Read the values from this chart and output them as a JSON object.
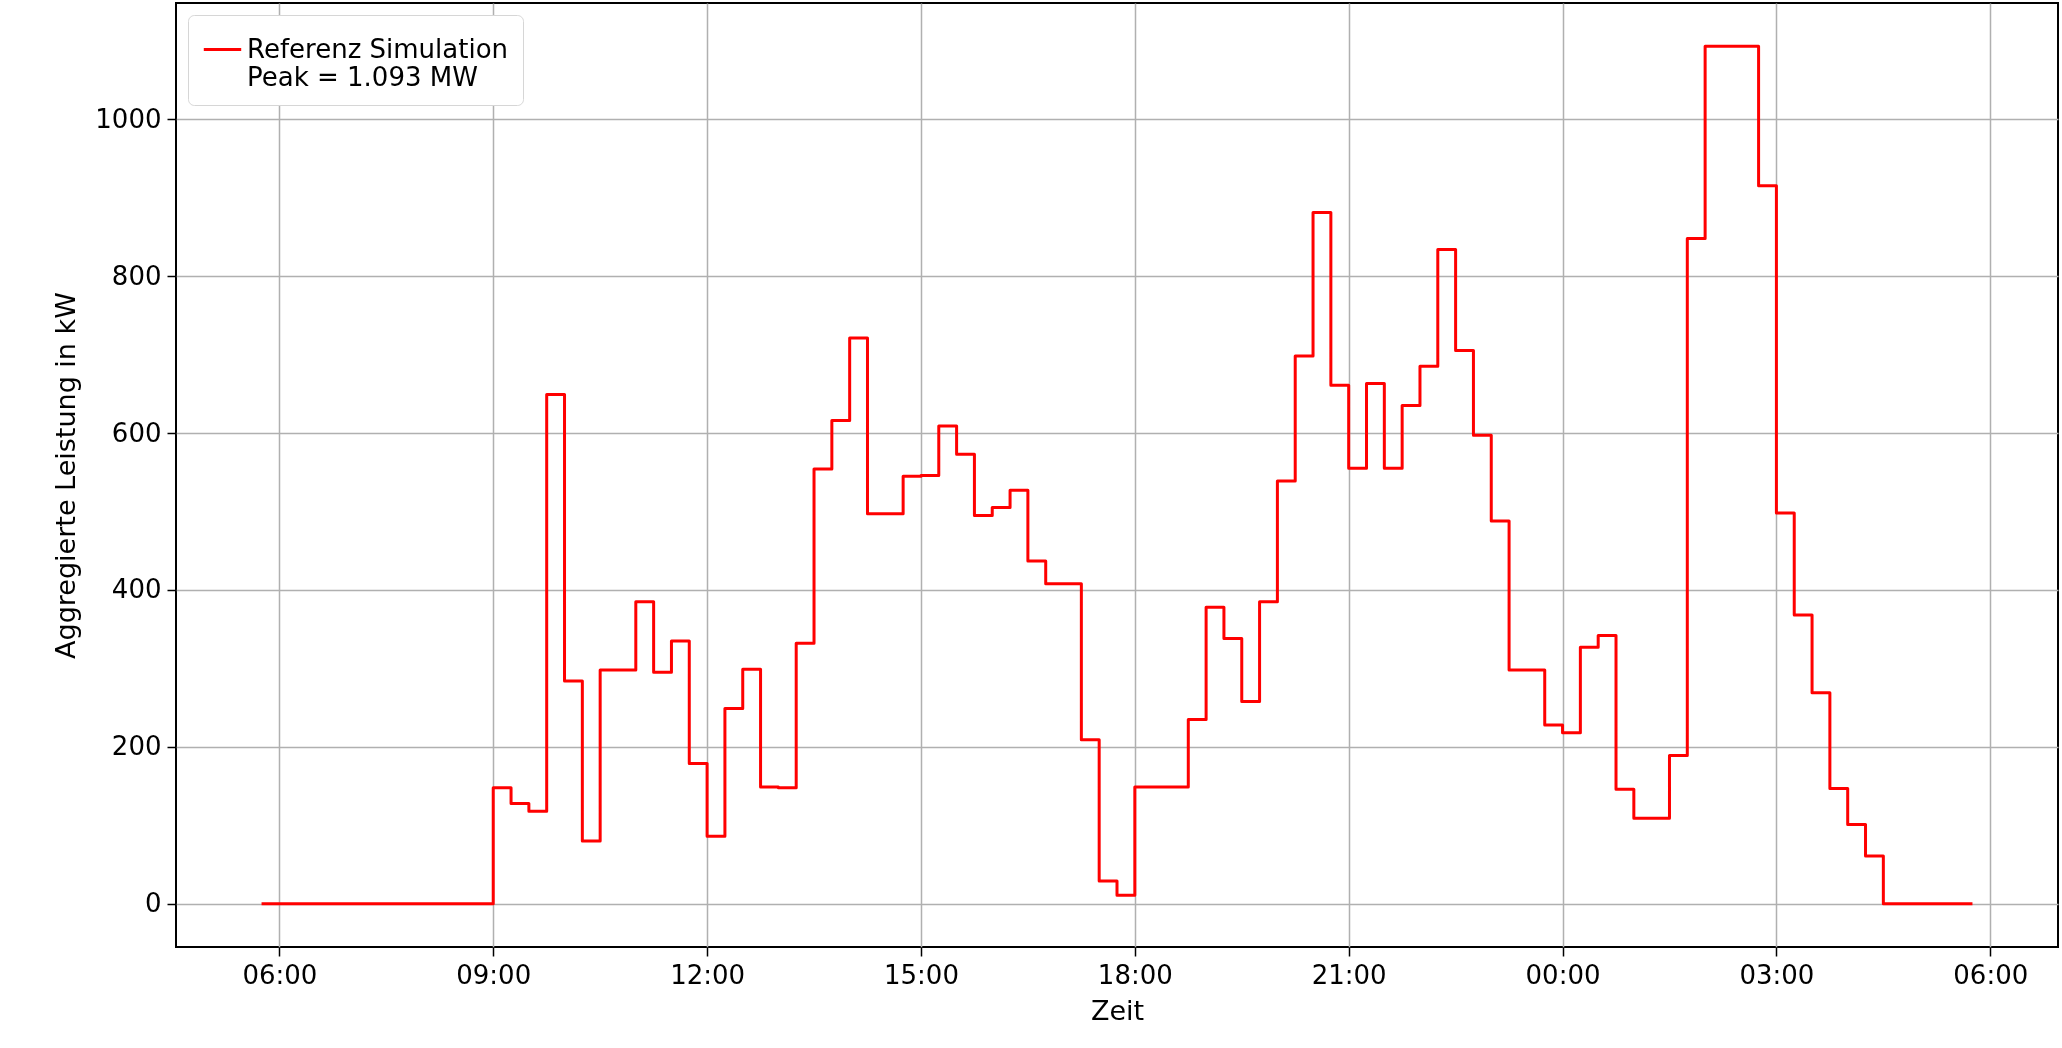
{
  "chart_data": {
    "type": "step",
    "xlabel": "Zeit",
    "ylabel": "Aggregierte Leistung in kW",
    "xlim": [
      "--01-01T04:33",
      "--01-02T06:57"
    ],
    "ylim": [
      -55,
      1148
    ],
    "xticks": [
      {
        "value": "--01-01T06:00",
        "label": "06:00"
      },
      {
        "value": "--01-01T09:00",
        "label": "09:00"
      },
      {
        "value": "--01-01T12:00",
        "label": "12:00"
      },
      {
        "value": "--01-01T15:00",
        "label": "15:00"
      },
      {
        "value": "--01-01T18:00",
        "label": "18:00"
      },
      {
        "value": "--01-01T21:00",
        "label": "21:00"
      },
      {
        "value": "--01-02T00:00",
        "label": "00:00"
      },
      {
        "value": "--01-02T03:00",
        "label": "03:00"
      },
      {
        "value": "--01-02T06:00",
        "label": "06:00"
      }
    ],
    "yticks": [
      0,
      200,
      400,
      600,
      800,
      1000
    ],
    "grid": true,
    "legend": "top left",
    "series": [
      {
        "name": "Referenz Simulation\nPeak = 1.093 MW",
        "color": "#ff0000",
        "x": [
          "--01-01T05:45",
          "--01-01T09:00",
          "--01-01T09:15",
          "--01-01T09:30",
          "--01-01T09:45",
          "--01-01T10:00",
          "--01-01T10:15",
          "--01-01T10:30",
          "--01-01T11:00",
          "--01-01T11:15",
          "--01-01T11:30",
          "--01-01T11:45",
          "--01-01T12:00",
          "--01-01T12:15",
          "--01-01T12:30",
          "--01-01T12:45",
          "--01-01T13:00",
          "--01-01T13:15",
          "--01-01T13:30",
          "--01-01T13:45",
          "--01-01T14:00",
          "--01-01T14:15",
          "--01-01T14:45",
          "--01-01T15:00",
          "--01-01T15:15",
          "--01-01T15:30",
          "--01-01T15:45",
          "--01-01T16:00",
          "--01-01T16:15",
          "--01-01T16:30",
          "--01-01T16:45",
          "--01-01T17:15",
          "--01-01T17:30",
          "--01-01T17:45",
          "--01-01T18:00",
          "--01-01T18:45",
          "--01-01T19:00",
          "--01-01T19:15",
          "--01-01T19:30",
          "--01-01T19:45",
          "--01-01T20:00",
          "--01-01T20:15",
          "--01-01T20:30",
          "--01-01T20:45",
          "--01-01T21:00",
          "--01-01T21:15",
          "--01-01T21:30",
          "--01-01T21:45",
          "--01-01T22:00",
          "--01-01T22:15",
          "--01-01T22:30",
          "--01-01T22:45",
          "--01-01T23:00",
          "--01-01T23:15",
          "--01-01T23:45",
          "--01-02T00:00",
          "--01-02T00:15",
          "--01-02T00:30",
          "--01-02T00:45",
          "--01-02T01:00",
          "--01-02T01:30",
          "--01-02T01:45",
          "--01-02T02:00",
          "--01-02T02:45",
          "--01-02T03:00",
          "--01-02T03:15",
          "--01-02T03:30",
          "--01-02T03:45",
          "--01-02T04:00",
          "--01-02T04:15",
          "--01-02T04:30",
          "--01-02T05:45"
        ],
        "values": [
          0,
          148,
          128,
          118,
          649,
          284,
          80,
          298,
          385,
          295,
          335,
          179,
          86,
          249,
          299,
          149,
          148,
          332,
          554,
          616,
          721,
          497,
          545,
          546,
          609,
          573,
          495,
          505,
          527,
          437,
          408,
          209,
          29,
          11,
          149,
          235,
          378,
          338,
          258,
          385,
          539,
          698,
          881,
          661,
          555,
          663,
          555,
          635,
          685,
          834,
          705,
          597,
          488,
          298,
          228,
          218,
          327,
          342,
          146,
          109,
          189,
          848,
          1093,
          915,
          498,
          368,
          269,
          147,
          101,
          61,
          0,
          0
        ]
      }
    ]
  }
}
